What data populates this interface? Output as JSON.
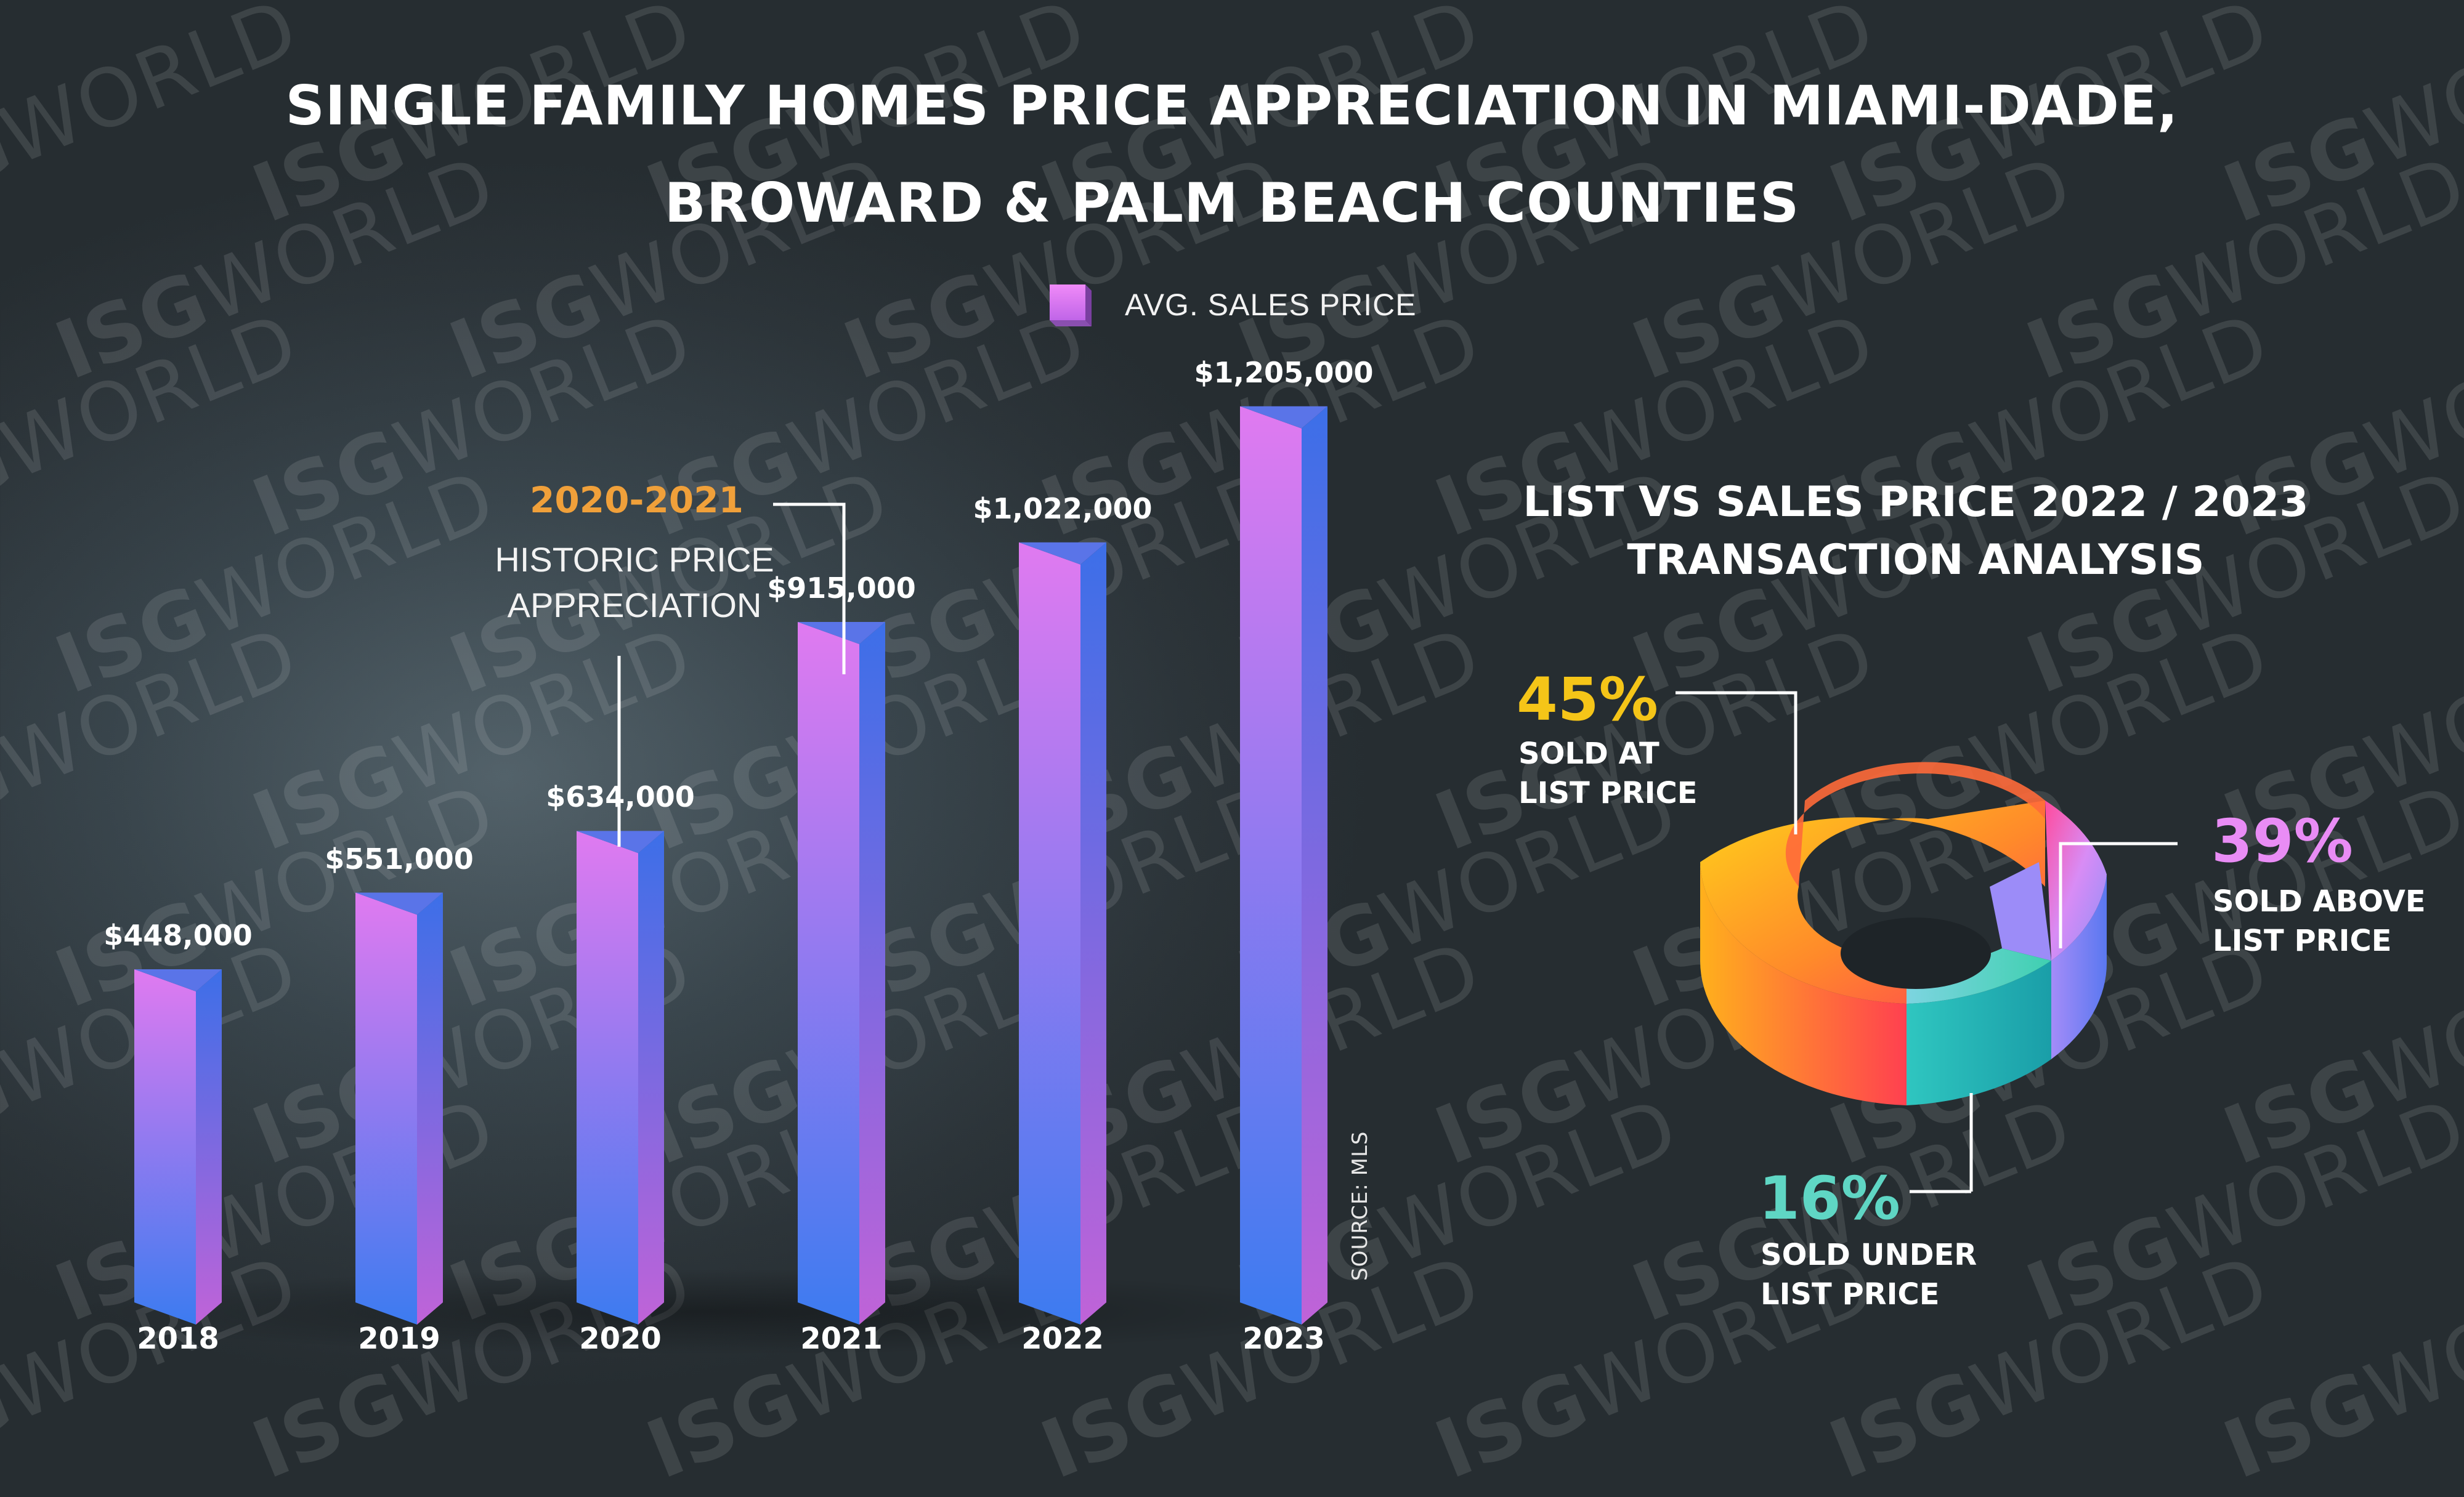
{
  "title": {
    "line1": "SINGLE FAMILY HOMES PRICE APPRECIATION IN MIAMI-DADE,",
    "line2": "BROWARD & PALM BEACH COUNTIES"
  },
  "watermark": {
    "bold": "ISG",
    "light": "WORLD"
  },
  "source_note": "SOURCE: MLS",
  "annotation": {
    "highlight": "2020-2021",
    "line1": "HISTORIC PRICE",
    "line2": "APPRECIATION"
  },
  "colors": {
    "bar_top": "#e07af0",
    "bar_bottom": "#3c7bf0",
    "annotation": "#f0a03a",
    "pct_at_list": "#f5c518",
    "pct_above_list": "#e98cf5",
    "pct_under_list": "#5fd6c4"
  },
  "chart_data": [
    {
      "type": "bar",
      "title": "SINGLE FAMILY HOMES PRICE APPRECIATION IN MIAMI-DADE, BROWARD & PALM BEACH COUNTIES",
      "legend": "AVG. SALES PRICE",
      "xlabel": "",
      "ylabel": "",
      "categories": [
        "2018",
        "2019",
        "2020",
        "2021",
        "2022",
        "2023"
      ],
      "values": [
        448000,
        551000,
        634000,
        915000,
        1022000,
        1205000
      ],
      "value_labels": [
        "$448,000",
        "$551,000",
        "$634,000",
        "$915,000",
        "$1,022,000",
        "$1,205,000"
      ],
      "ylim": [
        0,
        1300000
      ],
      "grid": false
    },
    {
      "type": "pie",
      "title_line1": "LIST VS SALES PRICE 2022 / 2023",
      "title_line2": "TRANSACTION ANALYSIS",
      "slices": [
        {
          "pct_label": "45%",
          "value": 45,
          "label_line1": "SOLD AT",
          "label_line2": "LIST PRICE"
        },
        {
          "pct_label": "39%",
          "value": 39,
          "label_line1": "SOLD ABOVE",
          "label_line2": "LIST PRICE"
        },
        {
          "pct_label": "16%",
          "value": 16,
          "label_line1": "SOLD UNDER",
          "label_line2": "LIST PRICE"
        }
      ]
    }
  ]
}
